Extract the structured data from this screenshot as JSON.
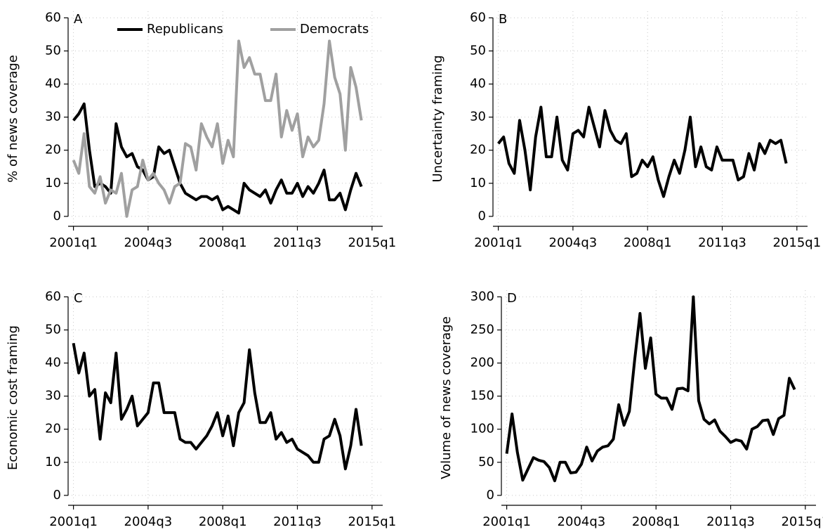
{
  "chart_data": [
    {
      "type": "line",
      "label": "A",
      "ylabel": "% of news coverage",
      "x": [
        164,
        165,
        166,
        167,
        168,
        169,
        170,
        171,
        172,
        173,
        174,
        175,
        176,
        177,
        178,
        179,
        180,
        181,
        182,
        183,
        184,
        185,
        186,
        187,
        188,
        189,
        190,
        191,
        192,
        193,
        194,
        195,
        196,
        197,
        198,
        199,
        200,
        201,
        202,
        203,
        204,
        205,
        206,
        207,
        208,
        209,
        210,
        211,
        212,
        213,
        214,
        215,
        216,
        217,
        218
      ],
      "series": [
        {
          "name": "Republicans",
          "color": "#000000",
          "values": [
            29,
            31,
            34,
            20,
            9,
            10,
            9,
            7,
            28,
            21,
            18,
            19,
            15,
            14,
            11,
            12,
            21,
            19,
            20,
            15,
            10,
            7,
            6,
            5,
            6,
            6,
            5,
            6,
            2,
            3,
            2,
            1,
            10,
            8,
            7,
            6,
            8,
            4,
            8,
            11,
            7,
            7,
            10,
            6,
            9,
            7,
            10,
            14,
            5,
            5,
            7,
            2,
            8,
            13,
            9
          ]
        },
        {
          "name": "Democrats",
          "color": "#a0a0a0",
          "values": [
            17,
            13,
            25,
            9,
            7,
            12,
            4,
            8,
            7,
            13,
            0,
            8,
            9,
            17,
            11,
            13,
            10,
            8,
            4,
            9,
            10,
            22,
            21,
            14,
            28,
            24,
            21,
            28,
            16,
            23,
            18,
            53,
            45,
            48,
            43,
            43,
            35,
            35,
            43,
            24,
            32,
            26,
            31,
            18,
            24,
            21,
            23,
            34,
            53,
            42,
            37,
            20,
            45,
            39,
            29
          ]
        }
      ],
      "xlim": [
        163,
        222
      ],
      "xticks": [
        {
          "value": 164,
          "label": "2001q1"
        },
        {
          "value": 178,
          "label": "2004q3"
        },
        {
          "value": 192,
          "label": "2008q1"
        },
        {
          "value": 206,
          "label": "2011q3"
        },
        {
          "value": 220,
          "label": "2015q1"
        }
      ],
      "ylim": [
        -3,
        62
      ],
      "yticks": [
        0,
        10,
        20,
        30,
        40,
        50,
        60
      ],
      "grid": true,
      "legend": "top"
    },
    {
      "type": "line",
      "label": "B",
      "ylabel": "Uncertainty framing",
      "x": [
        164,
        165,
        166,
        167,
        168,
        169,
        170,
        171,
        172,
        173,
        174,
        175,
        176,
        177,
        178,
        179,
        180,
        181,
        182,
        183,
        184,
        185,
        186,
        187,
        188,
        189,
        190,
        191,
        192,
        193,
        194,
        195,
        196,
        197,
        198,
        199,
        200,
        201,
        202,
        203,
        204,
        205,
        206,
        207,
        208,
        209,
        210,
        211,
        212,
        213,
        214,
        215,
        216,
        217,
        218
      ],
      "series": [
        {
          "color": "#000000",
          "values": [
            22,
            24,
            16,
            13,
            29,
            20,
            8,
            24,
            33,
            18,
            18,
            30,
            17,
            14,
            25,
            26,
            24,
            33,
            27,
            21,
            32,
            26,
            23,
            22,
            25,
            12,
            13,
            17,
            15,
            18,
            11,
            6,
            12,
            17,
            13,
            20,
            30,
            15,
            21,
            15,
            14,
            21,
            17,
            17,
            17,
            11,
            12,
            19,
            14,
            22,
            19,
            23,
            22,
            23,
            16
          ]
        }
      ],
      "xlim": [
        163,
        222
      ],
      "xticks": [
        {
          "value": 164,
          "label": "2001q1"
        },
        {
          "value": 178,
          "label": "2004q3"
        },
        {
          "value": 192,
          "label": "2008q1"
        },
        {
          "value": 206,
          "label": "2011q3"
        },
        {
          "value": 220,
          "label": "2015q1"
        }
      ],
      "ylim": [
        -3,
        62
      ],
      "yticks": [
        0,
        10,
        20,
        30,
        40,
        50,
        60
      ],
      "grid": true
    },
    {
      "type": "line",
      "label": "C",
      "ylabel": "Economic cost framing",
      "x": [
        164,
        165,
        166,
        167,
        168,
        169,
        170,
        171,
        172,
        173,
        174,
        175,
        176,
        177,
        178,
        179,
        180,
        181,
        182,
        183,
        184,
        185,
        186,
        187,
        188,
        189,
        190,
        191,
        192,
        193,
        194,
        195,
        196,
        197,
        198,
        199,
        200,
        201,
        202,
        203,
        204,
        205,
        206,
        207,
        208,
        209,
        210,
        211,
        212,
        213,
        214,
        215,
        216,
        217,
        218
      ],
      "series": [
        {
          "color": "#000000",
          "values": [
            46,
            37,
            43,
            30,
            32,
            17,
            31,
            28,
            43,
            23,
            26,
            30,
            21,
            23,
            25,
            34,
            34,
            25,
            25,
            25,
            17,
            16,
            16,
            14,
            16,
            18,
            21,
            25,
            18,
            24,
            15,
            25,
            28,
            44,
            31,
            22,
            22,
            25,
            17,
            19,
            16,
            17,
            14,
            13,
            12,
            10,
            10,
            17,
            18,
            23,
            18,
            8,
            15,
            26,
            15
          ]
        }
      ],
      "xlim": [
        163,
        222
      ],
      "xticks": [
        {
          "value": 164,
          "label": "2001q1"
        },
        {
          "value": 178,
          "label": "2004q3"
        },
        {
          "value": 192,
          "label": "2008q1"
        },
        {
          "value": 206,
          "label": "2011q3"
        },
        {
          "value": 220,
          "label": "2015q1"
        }
      ],
      "ylim": [
        -3,
        62
      ],
      "yticks": [
        0,
        10,
        20,
        30,
        40,
        50,
        60
      ],
      "grid": true
    },
    {
      "type": "line",
      "label": "D",
      "ylabel": "Volume of news coverage",
      "x": [
        164,
        165,
        166,
        167,
        168,
        169,
        170,
        171,
        172,
        173,
        174,
        175,
        176,
        177,
        178,
        179,
        180,
        181,
        182,
        183,
        184,
        185,
        186,
        187,
        188,
        189,
        190,
        191,
        192,
        193,
        194,
        195,
        196,
        197,
        198,
        199,
        200,
        201,
        202,
        203,
        204,
        205,
        206,
        207,
        208,
        209,
        210,
        211,
        212,
        213,
        214,
        215,
        216,
        217,
        218
      ],
      "series": [
        {
          "color": "#000000",
          "values": [
            63,
            123,
            65,
            23,
            40,
            57,
            53,
            51,
            42,
            22,
            50,
            50,
            34,
            35,
            47,
            73,
            52,
            67,
            73,
            75,
            85,
            137,
            106,
            127,
            205,
            275,
            192,
            238,
            153,
            147,
            147,
            130,
            161,
            162,
            158,
            300,
            143,
            115,
            108,
            114,
            97,
            89,
            80,
            84,
            82,
            70,
            100,
            104,
            113,
            114,
            92,
            116,
            121,
            177,
            160
          ]
        }
      ],
      "xlim": [
        163,
        222
      ],
      "xticks": [
        {
          "value": 164,
          "label": "2001q1"
        },
        {
          "value": 178,
          "label": "2004q3"
        },
        {
          "value": 192,
          "label": "2008q1"
        },
        {
          "value": 206,
          "label": "2011q3"
        },
        {
          "value": 220,
          "label": "2015q1"
        }
      ],
      "ylim": [
        -15,
        310
      ],
      "yticks": [
        0,
        50,
        100,
        150,
        200,
        250,
        300
      ],
      "grid": true
    }
  ]
}
